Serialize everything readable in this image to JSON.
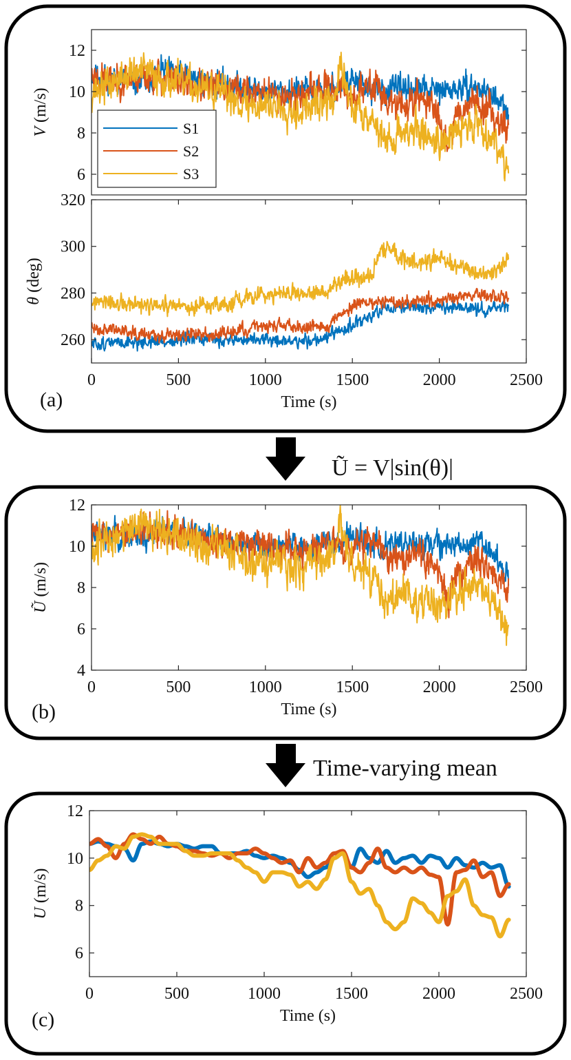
{
  "colors": {
    "S1": "#0072BD",
    "S2": "#D95319",
    "S3": "#EDB120",
    "frame": "#000000",
    "axis": "#262626"
  },
  "chart_data": [
    {
      "id": "a",
      "type": "line",
      "panel_label": "(a)",
      "xlabel": "Time (s)",
      "xlim": [
        0,
        2500
      ],
      "xticks": [
        0,
        500,
        1000,
        1500,
        2000,
        2500
      ],
      "legend": {
        "position": "bottom-left",
        "entries": [
          "S1",
          "S2",
          "S3"
        ]
      },
      "subplots": [
        {
          "id": "V",
          "ylabel_italic": "V",
          "ylabel_rest": " (m/s)",
          "ylim": [
            5,
            13
          ],
          "yticks": [
            6,
            8,
            10,
            12
          ],
          "series": [
            {
              "name": "S1",
              "x": [
                0,
                200,
                300,
                400,
                600,
                800,
                1000,
                1200,
                1400,
                1500,
                1600,
                1700,
                1800,
                2000,
                2200,
                2300,
                2400
              ],
              "values": [
                10.8,
                10.5,
                10.4,
                11.0,
                10.6,
                10.3,
                10.0,
                10.0,
                10.2,
                10.6,
                10.1,
                10.0,
                10.2,
                10.0,
                10.2,
                9.9,
                8.8
              ],
              "noise": 0.45,
              "seed": 11
            },
            {
              "name": "S2",
              "x": [
                0,
                100,
                200,
                300,
                400,
                600,
                800,
                1000,
                1200,
                1400,
                1500,
                1650,
                1700,
                1800,
                1900,
                2000,
                2050,
                2100,
                2200,
                2300,
                2400
              ],
              "values": [
                10.8,
                10.5,
                10.6,
                10.8,
                10.7,
                10.3,
                10.2,
                9.9,
                9.8,
                10.2,
                9.8,
                10.4,
                9.4,
                9.3,
                9.8,
                8.8,
                7.5,
                9.0,
                9.6,
                9.0,
                8.2
              ],
              "noise": 0.55,
              "seed": 23
            },
            {
              "name": "S3",
              "x": [
                0,
                100,
                200,
                300,
                400,
                600,
                800,
                900,
                1000,
                1200,
                1400,
                1430,
                1500,
                1600,
                1700,
                1800,
                1900,
                2000,
                2100,
                2200,
                2300,
                2350,
                2400
              ],
              "values": [
                10.0,
                10.3,
                10.8,
                11.0,
                10.7,
                10.2,
                9.8,
                9.3,
                9.4,
                9.1,
                9.6,
                11.2,
                9.2,
                8.9,
                7.5,
                8.2,
                8.0,
                7.6,
                8.0,
                8.6,
                7.8,
                7.2,
                6.3
              ],
              "noise": 0.6,
              "seed": 37
            }
          ]
        },
        {
          "id": "theta",
          "ylabel_italic": "θ",
          "ylabel_rest": " (deg)",
          "ylim": [
            250,
            320
          ],
          "yticks": [
            260,
            280,
            300,
            320
          ],
          "series": [
            {
              "name": "S1",
              "x": [
                0,
                200,
                400,
                600,
                800,
                1000,
                1200,
                1350,
                1450,
                1550,
                1650,
                1800,
                2000,
                2200,
                2400
              ],
              "values": [
                258,
                259,
                259,
                260,
                260,
                260,
                259,
                261,
                264,
                268,
                272,
                274,
                274,
                273,
                274
              ],
              "noise": 2.0,
              "seed": 51
            },
            {
              "name": "S2",
              "x": [
                0,
                200,
                400,
                600,
                800,
                1000,
                1200,
                1350,
                1450,
                1550,
                1650,
                1800,
                2000,
                2200,
                2400
              ],
              "values": [
                265,
                264,
                262,
                262,
                263,
                266,
                266,
                266,
                272,
                276,
                276,
                276,
                277,
                279,
                278
              ],
              "noise": 2.0,
              "seed": 63
            },
            {
              "name": "S3",
              "x": [
                0,
                200,
                400,
                600,
                800,
                900,
                1000,
                1200,
                1350,
                1450,
                1500,
                1600,
                1680,
                1750,
                1900,
                2000,
                2100,
                2200,
                2300,
                2400
              ],
              "values": [
                276,
                275,
                274,
                274,
                275,
                279,
                280,
                279,
                281,
                286,
                287,
                286,
                300,
                296,
                292,
                295,
                292,
                290,
                288,
                296
              ],
              "noise": 2.6,
              "seed": 77
            }
          ]
        }
      ]
    },
    {
      "id": "b",
      "type": "line",
      "panel_label": "(b)",
      "xlabel": "Time (s)",
      "ylabel_italic": "Ũ",
      "ylabel_rest": " (m/s)",
      "xlim": [
        0,
        2500
      ],
      "xticks": [
        0,
        500,
        1000,
        1500,
        2000,
        2500
      ],
      "ylim": [
        4,
        12
      ],
      "yticks": [
        4,
        6,
        8,
        10,
        12
      ],
      "series": [
        {
          "name": "S1",
          "x": [
            0,
            200,
            300,
            400,
            600,
            800,
            1000,
            1200,
            1400,
            1500,
            1600,
            1700,
            1800,
            2000,
            2200,
            2300,
            2400
          ],
          "values": [
            10.8,
            10.5,
            10.3,
            11.0,
            10.6,
            10.3,
            10.0,
            10.0,
            10.2,
            10.6,
            10.1,
            10.0,
            10.2,
            10.0,
            10.2,
            9.9,
            8.5
          ],
          "noise": 0.45,
          "seed": 111
        },
        {
          "name": "S2",
          "x": [
            0,
            100,
            200,
            300,
            400,
            600,
            800,
            1000,
            1200,
            1400,
            1500,
            1650,
            1700,
            1800,
            1900,
            2000,
            2050,
            2100,
            2200,
            2300,
            2400
          ],
          "values": [
            10.8,
            10.5,
            10.6,
            10.8,
            10.7,
            10.3,
            10.2,
            9.9,
            9.8,
            10.2,
            9.8,
            10.4,
            9.3,
            9.3,
            9.6,
            8.6,
            7.0,
            8.8,
            9.5,
            8.8,
            7.8
          ],
          "noise": 0.55,
          "seed": 123
        },
        {
          "name": "S3",
          "x": [
            0,
            100,
            200,
            300,
            400,
            600,
            800,
            900,
            1000,
            1200,
            1400,
            1430,
            1500,
            1600,
            1700,
            1800,
            1900,
            2000,
            2100,
            2200,
            2300,
            2350,
            2400
          ],
          "values": [
            10.0,
            10.3,
            10.8,
            11.0,
            10.7,
            10.2,
            9.8,
            9.2,
            9.3,
            9.0,
            9.6,
            11.0,
            9.0,
            8.6,
            7.0,
            7.8,
            7.6,
            7.2,
            7.6,
            8.2,
            7.4,
            6.8,
            5.6
          ],
          "noise": 0.65,
          "seed": 137
        }
      ]
    },
    {
      "id": "c",
      "type": "line",
      "panel_label": "(c)",
      "xlabel": "Time (s)",
      "ylabel_italic": "U",
      "ylabel_rest": " (m/s)",
      "xlim": [
        0,
        2500
      ],
      "xticks": [
        0,
        500,
        1000,
        1500,
        2000,
        2500
      ],
      "ylim": [
        5,
        12
      ],
      "yticks": [
        6,
        8,
        10,
        12
      ],
      "series": [
        {
          "name": "S1",
          "x": [
            0,
            50,
            100,
            150,
            200,
            250,
            300,
            350,
            400,
            450,
            500,
            550,
            600,
            650,
            700,
            750,
            800,
            850,
            900,
            950,
            1000,
            1050,
            1100,
            1150,
            1200,
            1250,
            1300,
            1350,
            1400,
            1450,
            1500,
            1550,
            1600,
            1650,
            1700,
            1750,
            1800,
            1850,
            1900,
            1950,
            2000,
            2050,
            2100,
            2150,
            2200,
            2250,
            2300,
            2350,
            2400
          ],
          "values": [
            10.6,
            10.7,
            10.6,
            10.5,
            10.4,
            9.9,
            10.6,
            10.7,
            10.6,
            10.5,
            10.6,
            10.5,
            10.4,
            10.5,
            10.5,
            10.2,
            10.2,
            10.2,
            10.3,
            10.1,
            10.0,
            10.1,
            10.0,
            9.8,
            9.5,
            9.2,
            9.4,
            9.6,
            10.0,
            10.2,
            9.6,
            10.4,
            10.0,
            9.8,
            10.3,
            9.8,
            10.0,
            10.1,
            9.8,
            10.1,
            10.0,
            9.6,
            10.0,
            9.7,
            9.6,
            9.8,
            9.6,
            9.7,
            8.8
          ],
          "noise": 0,
          "seed": 0
        },
        {
          "name": "S2",
          "x": [
            0,
            50,
            100,
            150,
            200,
            250,
            300,
            350,
            400,
            450,
            500,
            550,
            600,
            650,
            700,
            750,
            800,
            850,
            900,
            950,
            1000,
            1050,
            1100,
            1150,
            1200,
            1250,
            1300,
            1350,
            1400,
            1450,
            1500,
            1550,
            1600,
            1650,
            1700,
            1750,
            1800,
            1850,
            1900,
            1950,
            2000,
            2050,
            2100,
            2150,
            2200,
            2250,
            2300,
            2350,
            2400
          ],
          "values": [
            10.6,
            10.8,
            10.5,
            10.0,
            10.6,
            11.0,
            10.8,
            10.6,
            10.9,
            10.6,
            10.5,
            10.3,
            10.3,
            10.2,
            10.1,
            10.2,
            10.0,
            10.2,
            10.2,
            10.4,
            10.2,
            10.0,
            9.8,
            9.9,
            9.4,
            10.0,
            9.6,
            9.8,
            10.2,
            10.3,
            9.6,
            9.4,
            9.8,
            10.4,
            9.6,
            9.4,
            9.6,
            9.4,
            9.6,
            9.3,
            9.2,
            7.2,
            9.4,
            9.5,
            9.9,
            9.2,
            9.4,
            8.4,
            8.9
          ],
          "noise": 0,
          "seed": 0
        },
        {
          "name": "S3",
          "x": [
            0,
            50,
            100,
            150,
            200,
            250,
            300,
            350,
            400,
            450,
            500,
            550,
            600,
            650,
            700,
            750,
            800,
            850,
            900,
            950,
            1000,
            1050,
            1100,
            1150,
            1200,
            1250,
            1300,
            1350,
            1400,
            1450,
            1500,
            1550,
            1600,
            1650,
            1700,
            1750,
            1800,
            1850,
            1900,
            1950,
            2000,
            2050,
            2100,
            2150,
            2200,
            2250,
            2300,
            2350,
            2400
          ],
          "values": [
            9.5,
            9.9,
            10.1,
            10.5,
            10.4,
            10.9,
            11.0,
            10.9,
            10.6,
            10.6,
            10.6,
            10.3,
            10.1,
            10.1,
            10.2,
            10.2,
            10.2,
            9.9,
            9.6,
            9.4,
            9.0,
            9.4,
            9.4,
            9.3,
            8.8,
            9.0,
            8.7,
            9.1,
            10.0,
            10.2,
            9.0,
            8.5,
            8.7,
            8.0,
            7.3,
            7.0,
            7.3,
            8.3,
            8.1,
            7.7,
            7.3,
            8.4,
            8.6,
            9.1,
            8.0,
            7.6,
            7.5,
            6.7,
            7.4
          ],
          "noise": 0,
          "seed": 0
        }
      ]
    }
  ],
  "annotations": {
    "arrow1_label": "Ũ = V|sin(θ)|",
    "arrow2_label": "Time-varying mean"
  }
}
